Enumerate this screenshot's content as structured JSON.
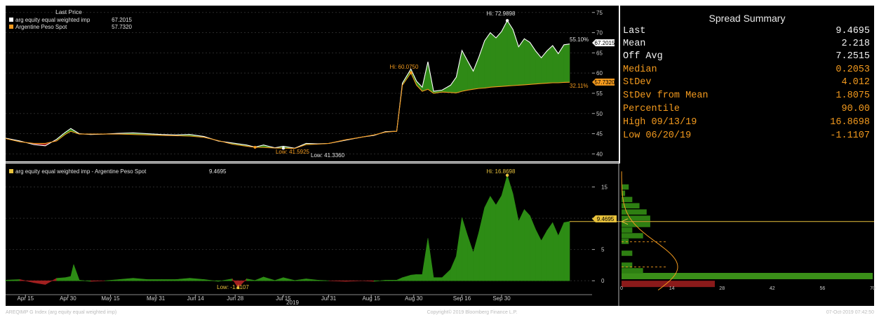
{
  "chart_data": [
    {
      "type": "area",
      "panel": "price",
      "legend_title": "Last Price",
      "series": [
        {
          "name": "arg equity equal weighted imp",
          "last": "67.2015",
          "color": "#ffffff",
          "points": [
            [
              0,
              43.9
            ],
            [
              5,
              43.2
            ],
            [
              10,
              42.3
            ],
            [
              14,
              42.0
            ],
            [
              18,
              43.6
            ],
            [
              21,
              45.3
            ],
            [
              23,
              46.3
            ],
            [
              26,
              45.0
            ],
            [
              30,
              44.8
            ],
            [
              35,
              44.9
            ],
            [
              40,
              45.1
            ],
            [
              45,
              45.2
            ],
            [
              50,
              45.0
            ],
            [
              55,
              44.8
            ],
            [
              60,
              44.7
            ],
            [
              65,
              44.8
            ],
            [
              70,
              44.3
            ],
            [
              75,
              43.2
            ],
            [
              80,
              42.7
            ],
            [
              85,
              42.2
            ],
            [
              88,
              41.7
            ],
            [
              91,
              42.2
            ],
            [
              95,
              41.5
            ],
            [
              98,
              41.9
            ],
            [
              102,
              41.4
            ],
            [
              106,
              42.6
            ],
            [
              110,
              42.5
            ],
            [
              114,
              42.6
            ],
            [
              120,
              43.4
            ],
            [
              126,
              44.2
            ],
            [
              130,
              44.6
            ],
            [
              134,
              45.5
            ],
            [
              138,
              45.6
            ],
            [
              140,
              57.5
            ],
            [
              143,
              61.0
            ],
            [
              145,
              58.0
            ],
            [
              147,
              56.5
            ],
            [
              149,
              62.8
            ],
            [
              151,
              55.5
            ],
            [
              154,
              55.8
            ],
            [
              157,
              57.0
            ],
            [
              159,
              59.0
            ],
            [
              161,
              65.6
            ],
            [
              163,
              63.0
            ],
            [
              165,
              60.5
            ],
            [
              167,
              64.0
            ],
            [
              169,
              68.0
            ],
            [
              171,
              70.0
            ],
            [
              173,
              68.7
            ],
            [
              175,
              70.3
            ],
            [
              177,
              72.99
            ],
            [
              179,
              70.8
            ],
            [
              181,
              66.5
            ],
            [
              183,
              68.5
            ],
            [
              185,
              67.6
            ],
            [
              187,
              65.5
            ],
            [
              189,
              63.8
            ],
            [
              191,
              65.5
            ],
            [
              193,
              66.8
            ],
            [
              195,
              64.8
            ],
            [
              197,
              67.0
            ],
            [
              199,
              67.2015
            ]
          ]
        },
        {
          "name": "Argentine Peso Spot",
          "last": "57.7320",
          "color": "#f39a1e",
          "points": [
            [
              0,
              43.8
            ],
            [
              5,
              43.0
            ],
            [
              10,
              42.6
            ],
            [
              14,
              42.6
            ],
            [
              18,
              43.2
            ],
            [
              21,
              44.8
            ],
            [
              23,
              45.6
            ],
            [
              26,
              44.9
            ],
            [
              30,
              44.9
            ],
            [
              35,
              44.9
            ],
            [
              40,
              44.9
            ],
            [
              45,
              44.8
            ],
            [
              50,
              44.7
            ],
            [
              55,
              44.6
            ],
            [
              60,
              44.5
            ],
            [
              65,
              44.4
            ],
            [
              70,
              44.1
            ],
            [
              75,
              43.3
            ],
            [
              80,
              42.4
            ],
            [
              85,
              41.9
            ],
            [
              88,
              41.65
            ],
            [
              91,
              41.6
            ],
            [
              95,
              41.45
            ],
            [
              98,
              41.4
            ],
            [
              102,
              41.35
            ],
            [
              106,
              42.3
            ],
            [
              110,
              42.4
            ],
            [
              114,
              42.6
            ],
            [
              120,
              43.5
            ],
            [
              126,
              44.2
            ],
            [
              130,
              44.7
            ],
            [
              134,
              45.4
            ],
            [
              138,
              45.6
            ],
            [
              140,
              57.0
            ],
            [
              143,
              60.07
            ],
            [
              145,
              57.0
            ],
            [
              147,
              55.5
            ],
            [
              149,
              56.0
            ],
            [
              151,
              55.0
            ],
            [
              154,
              55.3
            ],
            [
              157,
              55.2
            ],
            [
              159,
              55.1
            ],
            [
              161,
              55.5
            ],
            [
              163,
              55.8
            ],
            [
              165,
              56.0
            ],
            [
              167,
              56.2
            ],
            [
              169,
              56.3
            ],
            [
              171,
              56.5
            ],
            [
              173,
              56.6
            ],
            [
              175,
              56.7
            ],
            [
              177,
              56.8
            ],
            [
              179,
              56.9
            ],
            [
              181,
              57.0
            ],
            [
              183,
              57.1
            ],
            [
              185,
              57.2
            ],
            [
              187,
              57.3
            ],
            [
              189,
              57.4
            ],
            [
              191,
              57.5
            ],
            [
              193,
              57.6
            ],
            [
              195,
              57.6
            ],
            [
              197,
              57.7
            ],
            [
              199,
              57.732
            ]
          ]
        }
      ],
      "y_ticks": [
        40,
        45,
        50,
        55,
        60,
        65,
        70,
        75
      ],
      "ylim": [
        38.5,
        76
      ],
      "annotations": {
        "hi_equity": "Hi: 72.9898",
        "hi_peso": "Hi: 60.0750",
        "low_peso": "Low: 41.5925",
        "low_equity": "Low: 41.3360",
        "pct_equity": "55.10%",
        "pct_peso": "32.11%"
      }
    },
    {
      "type": "area",
      "panel": "spread",
      "series": [
        {
          "name": "arg equity equal weighted imp - Argentine Peso Spot",
          "last": "9.4695",
          "color": "#2f9a1e",
          "points": [
            [
              0,
              0.1
            ],
            [
              5,
              0.2
            ],
            [
              10,
              -0.3
            ],
            [
              14,
              -0.6
            ],
            [
              18,
              0.4
            ],
            [
              21,
              0.5
            ],
            [
              23,
              0.7
            ],
            [
              24,
              2.6
            ],
            [
              26,
              0.1
            ],
            [
              30,
              -0.1
            ],
            [
              35,
              0.0
            ],
            [
              40,
              0.2
            ],
            [
              45,
              0.4
            ],
            [
              50,
              0.2
            ],
            [
              55,
              0.2
            ],
            [
              60,
              0.2
            ],
            [
              65,
              0.4
            ],
            [
              70,
              0.2
            ],
            [
              75,
              -0.1
            ],
            [
              80,
              0.3
            ],
            [
              82,
              -1.1107
            ],
            [
              85,
              0.3
            ],
            [
              88,
              0.05
            ],
            [
              91,
              0.6
            ],
            [
              95,
              0.05
            ],
            [
              98,
              0.5
            ],
            [
              102,
              0.05
            ],
            [
              106,
              0.3
            ],
            [
              110,
              0.1
            ],
            [
              114,
              0.0
            ],
            [
              120,
              -0.1
            ],
            [
              126,
              0.0
            ],
            [
              130,
              -0.1
            ],
            [
              134,
              0.1
            ],
            [
              138,
              0.1
            ],
            [
              140,
              0.5
            ],
            [
              143,
              0.9
            ],
            [
              145,
              1.0
            ],
            [
              147,
              1.0
            ],
            [
              149,
              6.8
            ],
            [
              151,
              0.5
            ],
            [
              154,
              0.5
            ],
            [
              157,
              1.8
            ],
            [
              159,
              3.9
            ],
            [
              161,
              10.1
            ],
            [
              163,
              7.2
            ],
            [
              165,
              4.5
            ],
            [
              167,
              7.8
            ],
            [
              169,
              11.7
            ],
            [
              171,
              13.5
            ],
            [
              173,
              12.1
            ],
            [
              175,
              13.6
            ],
            [
              177,
              16.8698
            ],
            [
              179,
              13.9
            ],
            [
              181,
              9.5
            ],
            [
              183,
              11.4
            ],
            [
              185,
              10.4
            ],
            [
              187,
              8.2
            ],
            [
              189,
              6.4
            ],
            [
              191,
              8.0
            ],
            [
              193,
              9.3
            ],
            [
              195,
              7.2
            ],
            [
              197,
              9.3
            ],
            [
              199,
              9.4695
            ]
          ]
        }
      ],
      "y_ticks": [
        0,
        5,
        10,
        15
      ],
      "ylim": [
        -2,
        18.2
      ],
      "annotations": {
        "hi": "Hi: 16.8698",
        "low": "Low: -1.1107"
      }
    },
    {
      "type": "bar",
      "panel": "histogram",
      "orientation": "horizontal",
      "bins": [
        {
          "y": -0.5,
          "value": 26,
          "color": "#8a1a1a"
        },
        {
          "y": 0.75,
          "value": 70,
          "color": "#3a8f18"
        },
        {
          "y": 1.6,
          "value": 6,
          "color": "#2e7f12"
        },
        {
          "y": 2.5,
          "value": 3,
          "color": "#2e7f12"
        },
        {
          "y": 4.4,
          "value": 3,
          "color": "#2e7f12"
        },
        {
          "y": 6.3,
          "value": 2,
          "color": "#2e7f12"
        },
        {
          "y": 7.2,
          "value": 6,
          "color": "#2e7f12"
        },
        {
          "y": 8.1,
          "value": 3,
          "color": "#2e7f12"
        },
        {
          "y": 9.0,
          "value": 8,
          "color": "#2e7f12"
        },
        {
          "y": 10.0,
          "value": 8,
          "color": "#2e7f12"
        },
        {
          "y": 11.0,
          "value": 7,
          "color": "#2e7f12"
        },
        {
          "y": 12.0,
          "value": 5,
          "color": "#2e7f12"
        },
        {
          "y": 13.0,
          "value": 3,
          "color": "#2e7f12"
        },
        {
          "y": 14.0,
          "value": 1,
          "color": "#2e7f12"
        },
        {
          "y": 15.0,
          "value": 2,
          "color": "#2e7f12"
        }
      ],
      "x_ticks": [
        "0",
        "14",
        "28",
        "42",
        "56",
        "70"
      ],
      "xlim": [
        0,
        70
      ]
    }
  ],
  "x_axis": {
    "ticks": [
      {
        "label": "Apr 15",
        "x": 7
      },
      {
        "label": "Apr 30",
        "x": 22
      },
      {
        "label": "May 15",
        "x": 37
      },
      {
        "label": "May 31",
        "x": 53
      },
      {
        "label": "Jun 14",
        "x": 67
      },
      {
        "label": "Jun 28",
        "x": 81
      },
      {
        "label": "Jul 15",
        "x": 98
      },
      {
        "label": "Jul 31",
        "x": 114
      },
      {
        "label": "Aug 15",
        "x": 129
      },
      {
        "label": "Aug 30",
        "x": 144
      },
      {
        "label": "Sep 16",
        "x": 161
      },
      {
        "label": "Sep 30",
        "x": 175
      }
    ],
    "year_label": "2019"
  },
  "summary": {
    "title": "Spread Summary",
    "rows": [
      {
        "label": "Last",
        "value": "9.4695",
        "color": "#f2f2f2"
      },
      {
        "label": "Mean",
        "value": "2.218",
        "color": "#f2f2f2"
      },
      {
        "label": "Off Avg",
        "value": "7.2515",
        "color": "#f2f2f2"
      },
      {
        "label": "Median",
        "value": "0.2053",
        "color": "#f39a1e"
      },
      {
        "label": "StDev",
        "value": "4.012",
        "color": "#f39a1e"
      },
      {
        "label": "StDev from Mean",
        "value": "1.8075",
        "color": "#f39a1e"
      },
      {
        "label": "Percentile",
        "value": "90.00",
        "color": "#f39a1e"
      },
      {
        "label": "High 09/13/19",
        "value": "16.8698",
        "color": "#f39a1e"
      },
      {
        "label": "Low 06/20/19",
        "value": "-1.1107",
        "color": "#f39a1e"
      }
    ]
  },
  "footer": {
    "left": "AREQIMP G Index (arg equity equal weighted imp)",
    "center": "Copyright© 2019 Bloomberg Finance L.P.",
    "right": "07-Oct-2019 07:42:50"
  },
  "colors": {
    "background": "#000000",
    "positive_fill": "#2f8a16",
    "negative_fill": "#a12020",
    "accent_orange": "#f39a1e",
    "label_yellow": "#e8c23c"
  }
}
